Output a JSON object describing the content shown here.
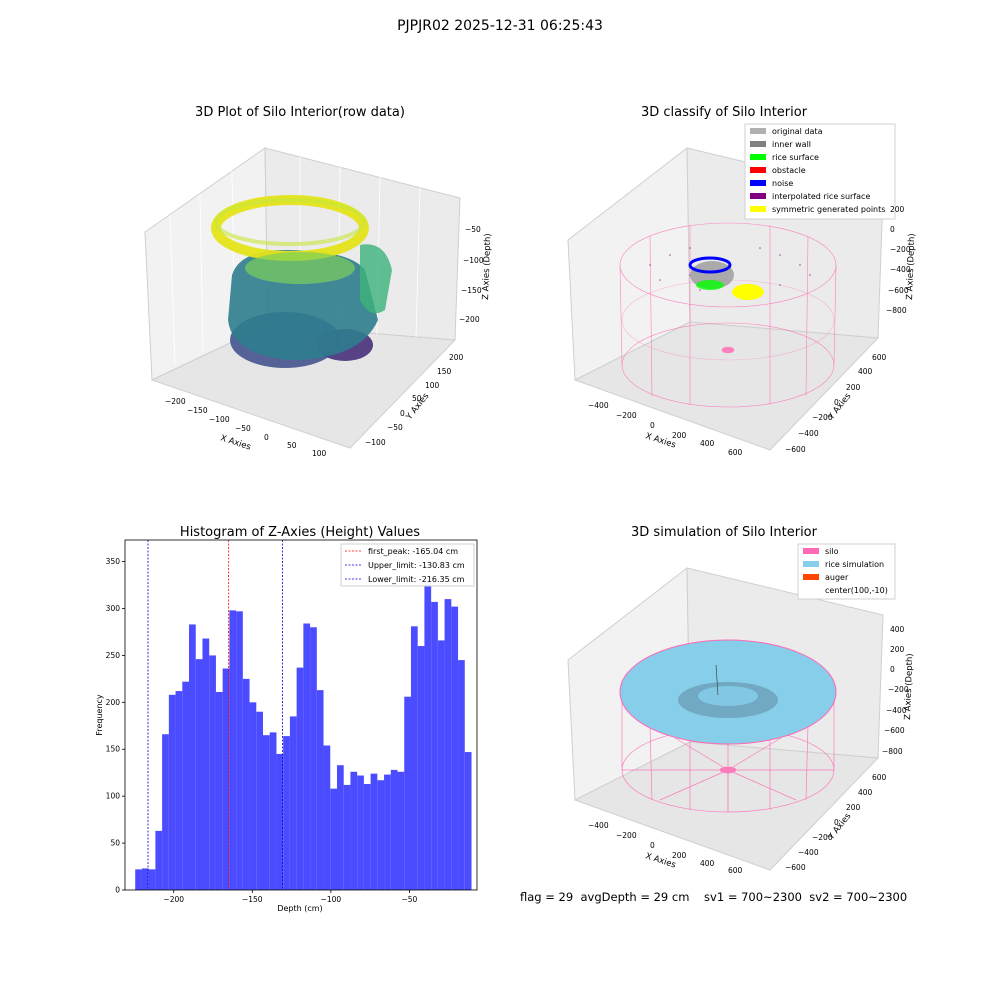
{
  "suptitle": "PJPJR02 2025-12-31 06:25:43",
  "footer": "flag = 29  avgDepth = 29 cm    sv1 = 700~2300  sv2 = 700~2300",
  "chart_data": [
    {
      "type": "scatter",
      "title": "3D Plot of Silo Interior(row data)",
      "xlabel": "X Axies",
      "ylabel": "Y Axies",
      "zlabel": "Z Axies (Depth)",
      "x_ticks": [
        "−200",
        "−150",
        "−100",
        "−50",
        "0",
        "50",
        "100"
      ],
      "y_ticks": [
        "200",
        "150",
        "100",
        "50",
        "0",
        "−50",
        "−100"
      ],
      "z_ticks": [
        "−50",
        "−100",
        "−150",
        "−200"
      ],
      "colormap": "viridis"
    },
    {
      "type": "scatter",
      "title": "3D classify of Silo Interior",
      "xlabel": "X Axies",
      "ylabel": "Y Axies",
      "zlabel": "Z Axies (Depth)",
      "x_ticks": [
        "−400",
        "−200",
        "0",
        "200",
        "400",
        "600"
      ],
      "y_ticks": [
        "600",
        "400",
        "200",
        "0",
        "−200",
        "−400",
        "−600"
      ],
      "z_ticks": [
        "200",
        "0",
        "−200",
        "−400",
        "−600",
        "−800"
      ],
      "legend_position": "top-right",
      "legend": [
        {
          "label": "original data",
          "color": "#b0b0b0"
        },
        {
          "label": "inner wall",
          "color": "#808080"
        },
        {
          "label": "rice surface",
          "color": "#00ff00"
        },
        {
          "label": "obstacle",
          "color": "#ff0000"
        },
        {
          "label": "noise",
          "color": "#0000ff"
        },
        {
          "label": "interpolated rice surface",
          "color": "#800080"
        },
        {
          "label": "symmetric generated points",
          "color": "#ffff00"
        }
      ]
    },
    {
      "type": "bar",
      "title": "Histogram of Z-Axies (Height) Values",
      "xlabel": "Depth (cm)",
      "ylabel": "Frequency",
      "xlim": [
        -231,
        -7
      ],
      "ylim": [
        0,
        373
      ],
      "x_ticks": [
        -200,
        -150,
        -100,
        -50
      ],
      "y_ticks": [
        0,
        50,
        100,
        150,
        200,
        250,
        300,
        350
      ],
      "bar_color": "#4b4bff",
      "bin_start": -224.5,
      "bin_width": 4.28,
      "values": [
        22,
        23,
        22,
        63,
        166,
        208,
        212,
        222,
        283,
        246,
        268,
        250,
        211,
        236,
        298,
        297,
        225,
        200,
        190,
        165,
        168,
        145,
        164,
        185,
        237,
        284,
        280,
        213,
        154,
        108,
        133,
        112,
        126,
        122,
        113,
        124,
        117,
        123,
        128,
        126,
        206,
        281,
        260,
        330,
        307,
        266,
        310,
        302,
        245,
        147
      ],
      "lines": [
        {
          "label": "first_peak: -165.04 cm",
          "x": -165.04,
          "color": "#ff0000"
        },
        {
          "label": "Upper_limit: -130.83 cm",
          "x": -130.83,
          "color": "#0000cc"
        },
        {
          "label": "Lower_limit: -216.35 cm",
          "x": -216.35,
          "color": "#0000cc"
        }
      ],
      "legend_position": "top-right"
    },
    {
      "type": "scatter",
      "title": "3D simulation of Silo Interior",
      "xlabel": "X Axies",
      "ylabel": "Y Axies",
      "zlabel": "Z Axies (Depth)",
      "x_ticks": [
        "−400",
        "−200",
        "0",
        "200",
        "400",
        "600"
      ],
      "y_ticks": [
        "600",
        "400",
        "200",
        "0",
        "−200",
        "−400",
        "−600"
      ],
      "z_ticks": [
        "400",
        "200",
        "0",
        "−200",
        "−400",
        "−600",
        "−800"
      ],
      "legend_position": "top-right",
      "legend": [
        {
          "label": "silo",
          "color": "#ff69b4"
        },
        {
          "label": "rice simulation",
          "color": "#87ceeb"
        },
        {
          "label": "auger",
          "color": "#ff4500"
        },
        {
          "label": "center(100,-10)",
          "color": ""
        }
      ]
    }
  ]
}
